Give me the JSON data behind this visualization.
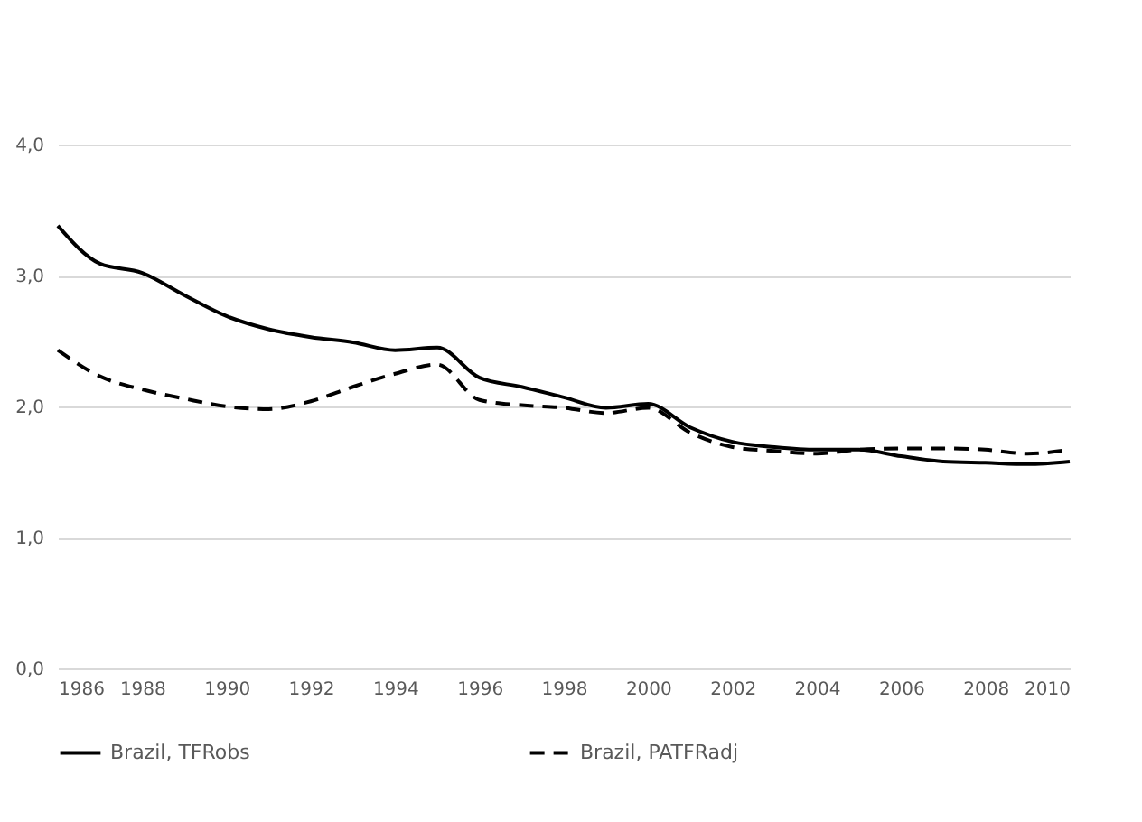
{
  "chart_data": {
    "type": "line",
    "x": [
      1986,
      1987,
      1988,
      1989,
      1990,
      1991,
      1992,
      1993,
      1994,
      1995,
      1996,
      1997,
      1998,
      1999,
      2000,
      2001,
      2002,
      2003,
      2004,
      2005,
      2006,
      2007,
      2008,
      2009,
      2010
    ],
    "series": [
      {
        "name": "Brazil, TFRobs",
        "color": "#000000",
        "line_style": "solid",
        "values": [
          3.38,
          3.09,
          3.02,
          2.85,
          2.69,
          2.59,
          2.53,
          2.49,
          2.43,
          2.45,
          2.22,
          2.15,
          2.07,
          1.99,
          2.02,
          1.84,
          1.73,
          1.69,
          1.67,
          1.67,
          1.62,
          1.58,
          1.57,
          1.56,
          1.58
        ]
      },
      {
        "name": "Brazil, PATFRadj",
        "color": "#000000",
        "line_style": "dashed",
        "values": [
          2.43,
          2.23,
          2.13,
          2.06,
          2.0,
          1.98,
          2.04,
          2.15,
          2.25,
          2.32,
          2.05,
          2.01,
          1.99,
          1.95,
          1.99,
          1.8,
          1.69,
          1.66,
          1.64,
          1.67,
          1.68,
          1.68,
          1.67,
          1.64,
          1.67
        ]
      }
    ],
    "xlim": [
      1986,
      2010
    ],
    "xticks": [
      1986,
      1988,
      1990,
      1992,
      1994,
      1996,
      1998,
      2000,
      2002,
      2004,
      2006,
      2008,
      2010
    ],
    "ylim": [
      0,
      4
    ],
    "yticks": [
      {
        "value": 0,
        "label": "0,0"
      },
      {
        "value": 1,
        "label": "1,0"
      },
      {
        "value": 2,
        "label": "2,0"
      },
      {
        "value": 3,
        "label": "3,0"
      },
      {
        "value": 4,
        "label": "4,0"
      }
    ],
    "grid": "y",
    "legend": "bottom"
  }
}
